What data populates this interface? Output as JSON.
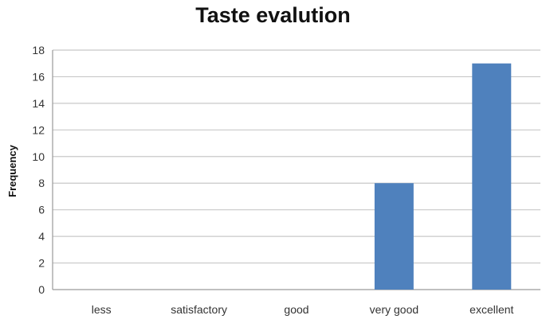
{
  "chart_data": {
    "type": "bar",
    "title": "Taste evalution",
    "xlabel": "",
    "ylabel": "Frequency",
    "categories": [
      "less",
      "satisfactory",
      "good",
      "very good",
      "excellent"
    ],
    "values": [
      0,
      0,
      0,
      8,
      17
    ],
    "ylim": [
      0,
      18
    ],
    "yticks": [
      0,
      2,
      4,
      6,
      8,
      10,
      12,
      14,
      16,
      18
    ],
    "grid": true,
    "legend": "none",
    "colors": {
      "bar": "#4f81bd",
      "grid": "#c8c8c8",
      "axis": "#9a9a9a"
    }
  }
}
